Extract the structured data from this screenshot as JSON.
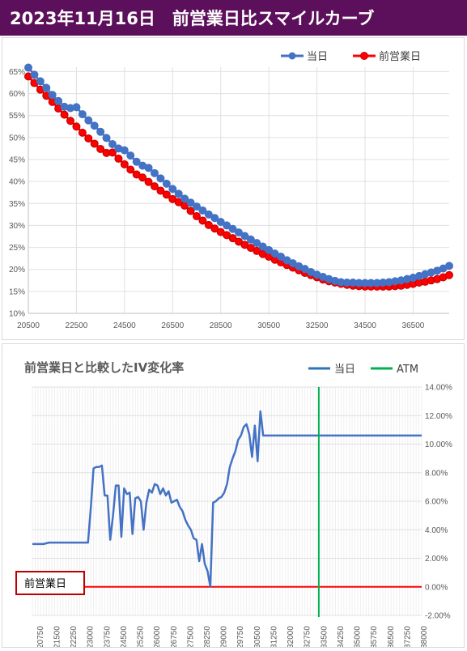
{
  "header": {
    "title": "2023年11月16日　前営業日比スマイルカーブ"
  },
  "charts": {
    "smile": {
      "legend": [
        "当日",
        "前営業日"
      ]
    },
    "change": {
      "title": "前営業日と比較したIV変化率",
      "legend": [
        "当日",
        "ATM"
      ],
      "annotation": "前営業日"
    }
  },
  "colors": {
    "title_bg": "#5c0f5a",
    "today": "#4472c4",
    "prev": "#ff0000",
    "change_line": "#4472c4",
    "atm": "#00b050",
    "zero_line": "#ff0000"
  },
  "chart_data": [
    {
      "type": "line",
      "title": "",
      "xlabel": "",
      "ylabel": "",
      "x_ticks": [
        20500,
        22500,
        24500,
        26500,
        28500,
        30500,
        32500,
        34500,
        36500
      ],
      "y_ticks": [
        "10%",
        "15%",
        "20%",
        "25%",
        "30%",
        "35%",
        "40%",
        "45%",
        "50%",
        "55%",
        "60%",
        "65%"
      ],
      "xlim": [
        20500,
        38000
      ],
      "ylim": [
        0.1,
        0.66
      ],
      "legend_position": "top-right",
      "grid": true,
      "x": [
        20500,
        20750,
        21000,
        21250,
        21500,
        21750,
        22000,
        22250,
        22500,
        22750,
        23000,
        23250,
        23500,
        23750,
        24000,
        24250,
        24500,
        24750,
        25000,
        25250,
        25500,
        25750,
        26000,
        26250,
        26500,
        26750,
        27000,
        27250,
        27500,
        27750,
        28000,
        28250,
        28500,
        28750,
        29000,
        29250,
        29500,
        29750,
        30000,
        30250,
        30500,
        30750,
        31000,
        31250,
        31500,
        31750,
        32000,
        32250,
        32500,
        32750,
        33000,
        33250,
        33500,
        33750,
        34000,
        34250,
        34500,
        34750,
        35000,
        35250,
        35500,
        35750,
        36000,
        36250,
        36500,
        36750,
        37000,
        37250,
        37500,
        37750,
        38000
      ],
      "series": [
        {
          "name": "当日",
          "values": [
            0.659,
            0.643,
            0.628,
            0.613,
            0.597,
            0.583,
            0.57,
            0.567,
            0.569,
            0.553,
            0.539,
            0.527,
            0.513,
            0.499,
            0.485,
            0.475,
            0.471,
            0.459,
            0.445,
            0.436,
            0.431,
            0.419,
            0.407,
            0.395,
            0.383,
            0.372,
            0.361,
            0.352,
            0.343,
            0.334,
            0.325,
            0.317,
            0.308,
            0.3,
            0.292,
            0.284,
            0.276,
            0.268,
            0.26,
            0.252,
            0.244,
            0.236,
            0.229,
            0.221,
            0.214,
            0.207,
            0.201,
            0.194,
            0.188,
            0.183,
            0.178,
            0.174,
            0.171,
            0.17,
            0.17,
            0.169,
            0.169,
            0.169,
            0.169,
            0.17,
            0.171,
            0.173,
            0.175,
            0.178,
            0.181,
            0.185,
            0.189,
            0.193,
            0.197,
            0.202,
            0.208
          ]
        },
        {
          "name": "前営業日",
          "values": [
            0.639,
            0.624,
            0.609,
            0.595,
            0.581,
            0.566,
            0.552,
            0.538,
            0.525,
            0.511,
            0.498,
            0.486,
            0.474,
            0.465,
            0.466,
            0.452,
            0.439,
            0.427,
            0.416,
            0.409,
            0.399,
            0.389,
            0.379,
            0.37,
            0.36,
            0.353,
            0.345,
            0.333,
            0.321,
            0.311,
            0.301,
            0.293,
            0.285,
            0.278,
            0.271,
            0.263,
            0.256,
            0.249,
            0.242,
            0.235,
            0.229,
            0.222,
            0.216,
            0.21,
            0.204,
            0.198,
            0.192,
            0.187,
            0.182,
            0.177,
            0.173,
            0.17,
            0.167,
            0.165,
            0.163,
            0.162,
            0.161,
            0.161,
            0.161,
            0.161,
            0.161,
            0.162,
            0.163,
            0.165,
            0.167,
            0.17,
            0.172,
            0.175,
            0.178,
            0.182,
            0.187
          ]
        }
      ]
    },
    {
      "type": "line",
      "title": "前営業日と比較したIV変化率",
      "xlabel": "",
      "ylabel": "",
      "x_ticks": [
        20750,
        21500,
        22250,
        23000,
        23750,
        24500,
        25250,
        26000,
        26750,
        27500,
        28250,
        29000,
        29750,
        30500,
        31250,
        32000,
        32750,
        33500,
        34250,
        35000,
        35750,
        36500,
        37250,
        38000
      ],
      "y_ticks": [
        "-2.00%",
        "0.00%",
        "2.00%",
        "4.00%",
        "6.00%",
        "8.00%",
        "10.00%",
        "12.00%",
        "14.00%"
      ],
      "xlim": [
        20500,
        38000
      ],
      "ylim": [
        -0.02,
        0.14
      ],
      "y_axis_side": "right",
      "legend_position": "top-right",
      "atm_x": 33375,
      "grid": true,
      "x": [
        20500,
        20750,
        21000,
        21250,
        21500,
        21750,
        22000,
        22250,
        22500,
        22750,
        23000,
        23125,
        23250,
        23375,
        23500,
        23625,
        23750,
        23875,
        24000,
        24125,
        24250,
        24375,
        24500,
        24625,
        24750,
        24875,
        25000,
        25125,
        25250,
        25375,
        25500,
        25625,
        25750,
        25875,
        26000,
        26125,
        26250,
        26375,
        26500,
        26625,
        26750,
        26875,
        27000,
        27125,
        27250,
        27375,
        27500,
        27625,
        27750,
        27875,
        28000,
        28125,
        28250,
        28375,
        28500,
        28625,
        28750,
        28875,
        29000,
        29125,
        29250,
        29375,
        29500,
        29625,
        29750,
        29875,
        30000,
        30125,
        30250,
        30375,
        30500,
        30625,
        30750,
        30875,
        31000,
        31125,
        31250,
        31375,
        31500,
        31625,
        31750,
        31875,
        32000,
        32125,
        32250,
        32375,
        32500,
        32625,
        32750,
        33000,
        33125,
        33250,
        33375,
        33500,
        33625,
        33750,
        33875,
        34000,
        34125,
        34250,
        34375,
        34500,
        34625,
        34750,
        34875,
        35000,
        35250,
        35500,
        35750,
        36000,
        36250,
        36500,
        36625,
        36750,
        36875,
        37000,
        37125,
        37250,
        37375,
        37500,
        37625,
        37750,
        37875,
        38000
      ],
      "series": [
        {
          "name": "当日",
          "values": [
            0.03,
            0.03,
            0.03,
            0.031,
            0.031,
            0.031,
            0.031,
            0.031,
            0.031,
            0.031,
            0.031,
            0.055,
            0.083,
            0.084,
            0.084,
            0.085,
            0.064,
            0.064,
            0.033,
            0.05,
            0.071,
            0.071,
            0.035,
            0.069,
            0.065,
            0.066,
            0.037,
            0.062,
            0.063,
            0.06,
            0.04,
            0.059,
            0.068,
            0.066,
            0.072,
            0.071,
            0.065,
            0.069,
            0.064,
            0.067,
            0.059,
            0.06,
            0.061,
            0.056,
            0.053,
            0.047,
            0.043,
            0.04,
            0.034,
            0.033,
            0.018,
            0.03,
            0.016,
            0.011,
            0.0,
            0.059,
            0.06,
            0.062,
            0.063,
            0.066,
            0.072,
            0.084,
            0.09,
            0.095,
            0.103,
            0.106,
            0.112,
            0.114,
            0.107,
            0.091,
            0.113,
            0.088,
            0.123,
            0.106,
            0.106,
            0.106,
            0.106,
            0.106,
            0.106,
            0.106,
            0.106,
            0.106,
            0.106,
            0.106,
            0.106,
            0.106,
            0.106,
            0.106,
            0.106,
            0.106,
            0.106,
            0.106,
            0.106,
            0.106,
            0.106,
            0.106,
            0.106,
            0.106,
            0.106,
            0.106,
            0.106,
            0.106,
            0.106,
            0.106,
            0.106,
            0.106,
            0.106,
            0.106,
            0.106,
            0.106,
            0.106,
            0.106,
            0.106,
            0.106,
            0.106,
            0.106,
            0.106,
            0.106,
            0.106,
            0.106,
            0.106,
            0.106,
            0.106,
            0.106
          ]
        }
      ],
      "zero_line": 0.0
    }
  ]
}
